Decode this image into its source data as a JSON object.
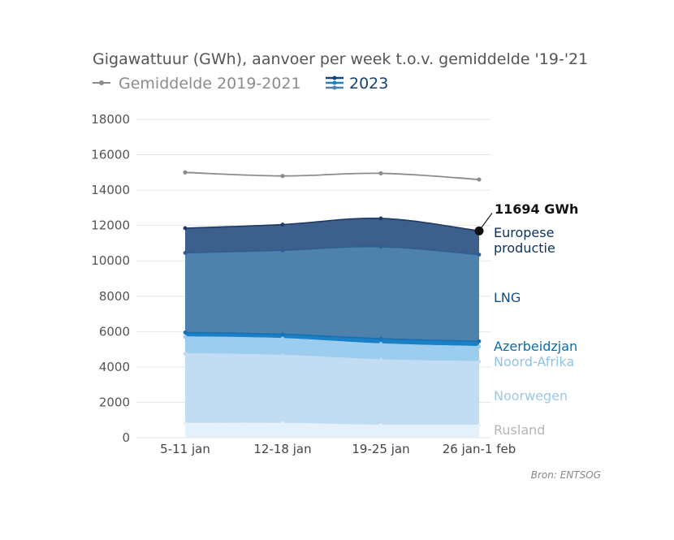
{
  "chart_data": {
    "type": "area",
    "title": "Gigawattuur (GWh), aanvoer per week t.o.v. gemiddelde '19-'21",
    "legend": [
      {
        "label": "Gemiddelde 2019-2021",
        "color": "#8c8c8c"
      },
      {
        "label": "2023",
        "color": "#154273"
      }
    ],
    "categories": [
      "5-11 jan",
      "12-18 jan",
      "19-25 jan",
      "26 jan-1 feb"
    ],
    "ylim": [
      0,
      18000
    ],
    "yticks": [
      "0",
      "2000",
      "4000",
      "6000",
      "8000",
      "10000",
      "12000",
      "14000",
      "16000",
      "18000"
    ],
    "average_line": {
      "name": "Gemiddelde 2019-2021",
      "values": [
        15000,
        14800,
        14950,
        14600
      ],
      "color": "#8c8c8c"
    },
    "series": [
      {
        "name": "Rusland",
        "values": [
          800,
          800,
          700,
          700
        ],
        "color": "#e4f1fb",
        "label_color": "#b5b5b5"
      },
      {
        "name": "Noorwegen",
        "values": [
          3950,
          3850,
          3700,
          3600
        ],
        "color": "#c2dcf2",
        "label_color": "#9cc8ea"
      },
      {
        "name": "Noord-Afrika",
        "values": [
          950,
          950,
          900,
          850
        ],
        "color": "#9dcdee",
        "label_color": "#8ec3e9"
      },
      {
        "name": "Azerbeidzjan",
        "values": [
          250,
          250,
          300,
          300
        ],
        "color": "#1b80c5",
        "label_color": "#0b6ba8"
      },
      {
        "name": "LNG",
        "values": [
          4500,
          4750,
          5200,
          4900
        ],
        "color": "#4f81ad",
        "label_color": "#0f4c81"
      },
      {
        "name": "Europese productie",
        "values": [
          1400,
          1450,
          1600,
          1344
        ],
        "color": "#3d5f8b",
        "label_color": "#0f3157"
      }
    ],
    "labels": {
      "rusland": "Rusland",
      "noorwegen": "Noorwegen",
      "noord_afrika": "Noord-Afrika",
      "azerbeidzjan": "Azerbeidzjan",
      "lng": "LNG",
      "europese_line1": "Europese",
      "europese_line2": "productie"
    },
    "annotation": {
      "text": "11694 GWh",
      "value": 11694,
      "category": "26 jan-1 feb"
    },
    "grid": true,
    "source": "Bron: ENTSOG"
  }
}
